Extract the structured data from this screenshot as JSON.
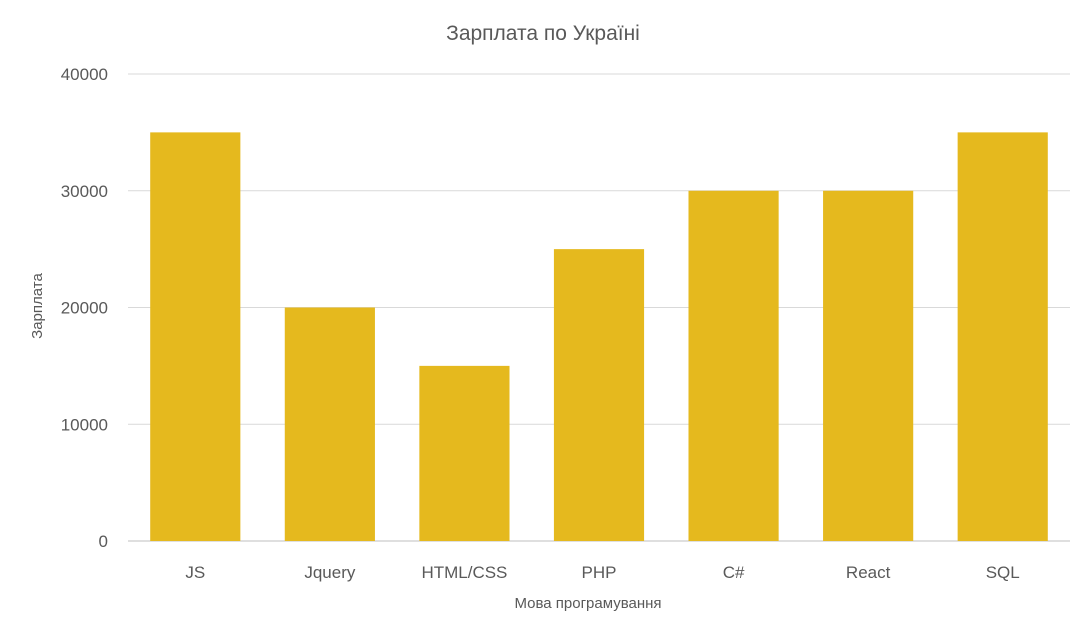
{
  "chart_data": {
    "type": "bar",
    "title": "Зарплата по Україні",
    "xlabel": "Мова програмування",
    "ylabel": "Зарплата",
    "categories": [
      "JS",
      "Jquery",
      "HTML/CSS",
      "PHP",
      "C#",
      "React",
      "SQL"
    ],
    "values": [
      35000,
      20000,
      15000,
      25000,
      30000,
      30000,
      35000
    ],
    "ylim": [
      0,
      40000
    ],
    "yticks": [
      0,
      10000,
      20000,
      30000,
      40000
    ],
    "grid": true,
    "legend": "none",
    "bar_color": "#E5B91E"
  }
}
